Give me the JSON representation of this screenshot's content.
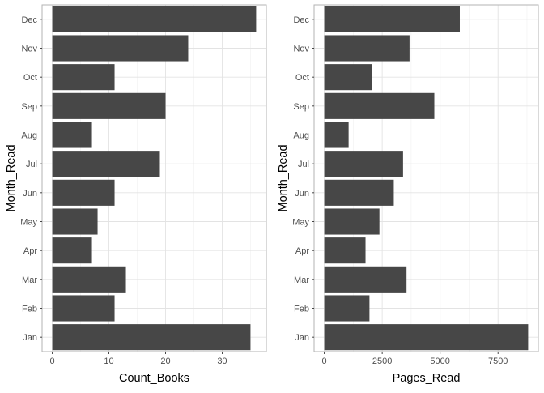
{
  "chart_data": [
    {
      "type": "bar",
      "orientation": "horizontal",
      "categories": [
        "Jan",
        "Feb",
        "Mar",
        "Apr",
        "May",
        "Jun",
        "Jul",
        "Aug",
        "Sep",
        "Oct",
        "Nov",
        "Dec"
      ],
      "values": [
        35,
        11,
        13,
        7,
        8,
        11,
        19,
        7,
        20,
        11,
        24,
        36
      ],
      "xlabel": "Count_Books",
      "ylabel": "Month_Read",
      "xlim": [
        -1.8,
        37.8
      ],
      "xticks": [
        0,
        10,
        20,
        30
      ],
      "xtick_labels": [
        "0",
        "10",
        "20",
        "30"
      ],
      "grid": true,
      "bar_color": "#474747"
    },
    {
      "type": "bar",
      "orientation": "horizontal",
      "categories": [
        "Jan",
        "Feb",
        "Mar",
        "Apr",
        "May",
        "Jun",
        "Jul",
        "Aug",
        "Sep",
        "Oct",
        "Nov",
        "Dec"
      ],
      "values": [
        8800,
        1950,
        3550,
        1780,
        2380,
        3000,
        3400,
        1050,
        4750,
        2050,
        3680,
        5850
      ],
      "xlabel": "Pages_Read",
      "ylabel": "Month_Read",
      "xlim": [
        -440,
        9240
      ],
      "xticks": [
        0,
        2500,
        5000,
        7500
      ],
      "xtick_labels": [
        "0",
        "2500",
        "5000",
        "7500"
      ],
      "grid": true,
      "bar_color": "#474747"
    }
  ]
}
